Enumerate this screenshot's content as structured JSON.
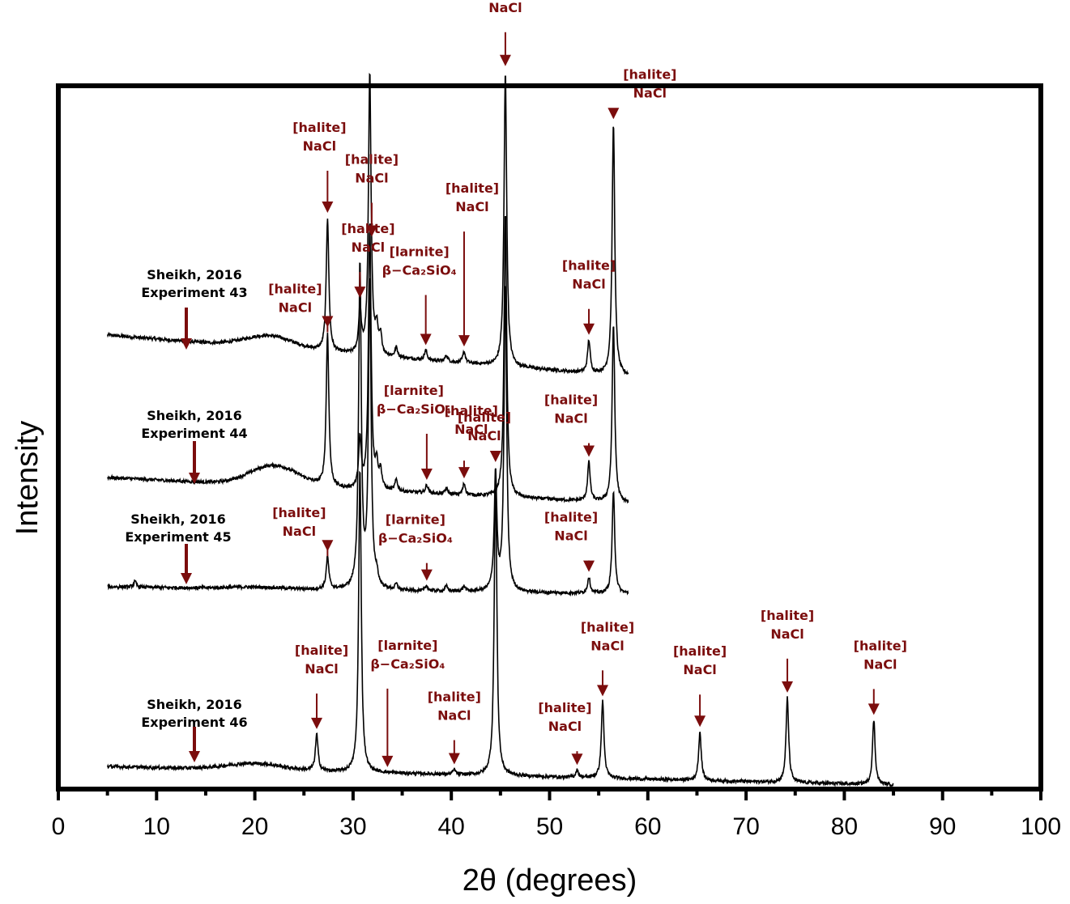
{
  "chart_data": {
    "type": "line",
    "xlabel": "2θ (degrees)",
    "ylabel": "Intensity",
    "xlim": [
      0,
      100
    ],
    "xticks": [
      0,
      10,
      20,
      30,
      40,
      50,
      60,
      70,
      80,
      90,
      100
    ],
    "x_minor_step": 5,
    "y_units": "arbitrary, stacked with offsets",
    "series": [
      {
        "name": "Sheikh, 2016 Experiment 43",
        "label_line1": "Sheikh, 2016",
        "label_line2": "Experiment 43",
        "x_range": [
          5,
          58
        ],
        "baseline_start": 66,
        "baseline_end": 15,
        "hump": {
          "center": 21.5,
          "height": 15,
          "width": 3.5
        },
        "peaks": [
          {
            "x": 27.4,
            "h": 165
          },
          {
            "x": 30.7,
            "h": 55
          },
          {
            "x": 31.7,
            "h": 350
          },
          {
            "x": 32.4,
            "h": 30
          },
          {
            "x": 32.8,
            "h": 22
          },
          {
            "x": 34.4,
            "h": 12
          },
          {
            "x": 37.4,
            "h": 12
          },
          {
            "x": 39.5,
            "h": 8
          },
          {
            "x": 41.3,
            "h": 14
          },
          {
            "x": 45.5,
            "h": 365
          },
          {
            "x": 54.0,
            "h": 40
          },
          {
            "x": 56.5,
            "h": 310
          }
        ]
      },
      {
        "name": "Sheikh, 2016 Experiment 44",
        "label_line1": "Sheikh, 2016",
        "label_line2": "Experiment 44",
        "x_range": [
          5,
          58
        ],
        "baseline_start": 45,
        "baseline_end": 13,
        "hump": {
          "center": 22,
          "height": 25,
          "width": 3.5
        },
        "peaks": [
          {
            "x": 27.4,
            "h": 190
          },
          {
            "x": 30.7,
            "h": 60
          },
          {
            "x": 31.7,
            "h": 330
          },
          {
            "x": 32.4,
            "h": 28
          },
          {
            "x": 32.8,
            "h": 22
          },
          {
            "x": 34.4,
            "h": 14
          },
          {
            "x": 37.5,
            "h": 10
          },
          {
            "x": 39.5,
            "h": 7
          },
          {
            "x": 41.3,
            "h": 14
          },
          {
            "x": 45.5,
            "h": 350
          },
          {
            "x": 54.0,
            "h": 48
          },
          {
            "x": 56.5,
            "h": 220
          }
        ]
      },
      {
        "name": "Sheikh, 2016 Experiment 45",
        "label_line1": "Sheikh, 2016",
        "label_line2": "Experiment 45",
        "x_range": [
          5,
          58
        ],
        "baseline_start": 35,
        "baseline_end": 26,
        "hump": {
          "center": 20,
          "height": 2,
          "width": 4
        },
        "peaks": [
          {
            "x": 7.8,
            "h": 7
          },
          {
            "x": 27.4,
            "h": 40
          },
          {
            "x": 30.7,
            "h": 400
          },
          {
            "x": 31.7,
            "h": 380
          },
          {
            "x": 32.4,
            "h": 14
          },
          {
            "x": 34.4,
            "h": 7
          },
          {
            "x": 37.5,
            "h": 6
          },
          {
            "x": 39.5,
            "h": 6
          },
          {
            "x": 41.3,
            "h": 6
          },
          {
            "x": 44.5,
            "h": 145
          },
          {
            "x": 45.5,
            "h": 380
          },
          {
            "x": 54.0,
            "h": 20
          },
          {
            "x": 56.5,
            "h": 125
          }
        ]
      },
      {
        "name": "Sheikh, 2016 Experiment 46",
        "label_line1": "Sheikh, 2016",
        "label_line2": "Experiment 46",
        "x_range": [
          5,
          85
        ],
        "baseline_start": 28,
        "baseline_end": 5,
        "hump": {
          "center": 20,
          "height": 8,
          "width": 4
        },
        "peaks": [
          {
            "x": 26.3,
            "h": 45
          },
          {
            "x": 30.7,
            "h": 375
          },
          {
            "x": 40.3,
            "h": 6
          },
          {
            "x": 44.5,
            "h": 375
          },
          {
            "x": 52.8,
            "h": 9
          },
          {
            "x": 55.4,
            "h": 95
          },
          {
            "x": 65.3,
            "h": 60
          },
          {
            "x": 74.2,
            "h": 105
          },
          {
            "x": 83.0,
            "h": 80
          }
        ]
      }
    ],
    "annotations": [
      {
        "line1": "[halite]",
        "line2": "NaCl",
        "x": 31.9,
        "series": 0
      },
      {
        "line1": "[halite]",
        "line2": "NaCl",
        "x": 45.5,
        "series": 0
      },
      {
        "line1": "[halite]",
        "line2": "NaCl",
        "x": 56.5,
        "series": 0
      },
      {
        "line1": "[halite]",
        "line2": "NaCl",
        "x": 27.4,
        "series": 0
      },
      {
        "line1": "[halite]",
        "line2": "NaCl",
        "x": 30.7,
        "series": 0
      },
      {
        "line1": "[halite]",
        "line2": "NaCl",
        "x": 41.3,
        "series": 0
      },
      {
        "line1": "[halite]",
        "line2": "NaCl",
        "x": 54.0,
        "series": 0
      },
      {
        "line1": "[larnite]",
        "line2": "β−Ca₂SiO₄",
        "x": 37.4,
        "series": 0
      },
      {
        "line1": "[halite]",
        "line2": "NaCl",
        "x": 27.4,
        "series": 1
      },
      {
        "line1": "[larnite]",
        "line2": "β−Ca₂SiO₄",
        "x": 37.5,
        "series": 1
      },
      {
        "line1": "[halite]",
        "line2": "NaCl",
        "x": 41.3,
        "series": 1
      },
      {
        "line1": "[halite]",
        "line2": "NaCl",
        "x": 54.0,
        "series": 1
      },
      {
        "line1": "[halite]",
        "line2": "NaCl",
        "x": 27.4,
        "series": 2
      },
      {
        "line1": "[larnite]",
        "line2": "β−Ca₂SiO₄",
        "x": 37.5,
        "series": 2
      },
      {
        "line1": "[halite]",
        "line2": "NaCl",
        "x": 44.5,
        "series": 2
      },
      {
        "line1": "[halite]",
        "line2": "NaCl",
        "x": 54.0,
        "series": 2
      },
      {
        "line1": "[halite]",
        "line2": "NaCl",
        "x": 26.3,
        "series": 3
      },
      {
        "line1": "[larnite]",
        "line2": "β−Ca₂SiO₄",
        "x": 33.5,
        "series": 3
      },
      {
        "line1": "[halite]",
        "line2": "NaCl",
        "x": 40.3,
        "series": 3
      },
      {
        "line1": "[halite]",
        "line2": "NaCl",
        "x": 52.8,
        "series": 3
      },
      {
        "line1": "[halite]",
        "line2": "NaCl",
        "x": 55.4,
        "series": 3
      },
      {
        "line1": "[halite]",
        "line2": "NaCl",
        "x": 65.3,
        "series": 3
      },
      {
        "line1": "[halite]",
        "line2": "NaCl",
        "x": 74.2,
        "series": 3
      },
      {
        "line1": "[halite]",
        "line2": "NaCl",
        "x": 83.0,
        "series": 3
      }
    ],
    "colors": {
      "annotation": "#7b0d0d",
      "trace": "#000000"
    }
  }
}
